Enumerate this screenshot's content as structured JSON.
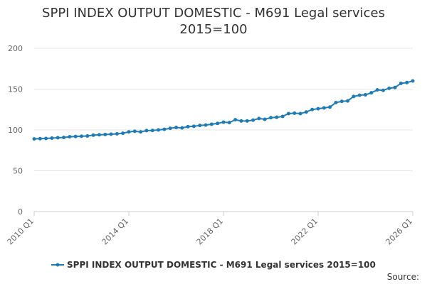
{
  "chart_data": {
    "type": "line",
    "title_line1": "SPPI INDEX OUTPUT DOMESTIC - M691 Legal services",
    "title_line2": "2015=100",
    "xlabel": "",
    "ylabel": "",
    "ylim": [
      0,
      200
    ],
    "yticks": [
      0,
      50,
      100,
      150,
      200
    ],
    "xtick_labels": [
      "2010 Q1",
      "2014 Q1",
      "2018 Q1",
      "2022 Q1",
      "2026 Q1"
    ],
    "x": [
      "2010 Q1",
      "2010 Q2",
      "2010 Q3",
      "2010 Q4",
      "2011 Q1",
      "2011 Q2",
      "2011 Q3",
      "2011 Q4",
      "2012 Q1",
      "2012 Q2",
      "2012 Q3",
      "2012 Q4",
      "2013 Q1",
      "2013 Q2",
      "2013 Q3",
      "2013 Q4",
      "2014 Q1",
      "2014 Q2",
      "2014 Q3",
      "2014 Q4",
      "2015 Q1",
      "2015 Q2",
      "2015 Q3",
      "2015 Q4",
      "2016 Q1",
      "2016 Q2",
      "2016 Q3",
      "2016 Q4",
      "2017 Q1",
      "2017 Q2",
      "2017 Q3",
      "2017 Q4",
      "2018 Q1",
      "2018 Q2",
      "2018 Q3",
      "2018 Q4",
      "2019 Q1",
      "2019 Q2",
      "2019 Q3",
      "2019 Q4",
      "2020 Q1",
      "2020 Q2",
      "2020 Q3",
      "2020 Q4",
      "2021 Q1",
      "2021 Q2",
      "2021 Q3",
      "2021 Q4",
      "2022 Q1",
      "2022 Q2",
      "2022 Q3",
      "2022 Q4",
      "2023 Q1",
      "2023 Q2",
      "2023 Q3",
      "2023 Q4",
      "2024 Q1",
      "2024 Q2",
      "2024 Q3",
      "2024 Q4",
      "2025 Q1",
      "2025 Q2",
      "2025 Q3",
      "2025 Q4",
      "2026 Q1"
    ],
    "series": [
      {
        "name": "SPPI INDEX OUTPUT DOMESTIC - M691 Legal services 2015=100",
        "color": "#1f7bb6",
        "values": [
          89.0,
          89.3,
          89.6,
          90.0,
          90.4,
          90.8,
          91.6,
          92.0,
          92.3,
          92.6,
          93.6,
          94.0,
          94.4,
          94.8,
          95.2,
          96.0,
          97.6,
          98.4,
          97.6,
          99.2,
          99.4,
          100.0,
          100.8,
          102.0,
          103.0,
          102.5,
          104.0,
          104.5,
          105.5,
          106.0,
          107.0,
          108.0,
          109.5,
          109.0,
          112.5,
          111.0,
          111.0,
          112.0,
          114.0,
          113.0,
          115.0,
          115.5,
          116.5,
          120.0,
          120.5,
          120.0,
          122.0,
          125.0,
          126.0,
          127.0,
          128.0,
          133.5,
          135.0,
          135.5,
          141.0,
          142.5,
          143.0,
          145.5,
          149.0,
          148.5,
          151.0,
          152.0,
          157.0,
          158.0,
          160.0
        ]
      }
    ],
    "legend_position": "bottom",
    "grid": true
  },
  "source_label": "Source:"
}
